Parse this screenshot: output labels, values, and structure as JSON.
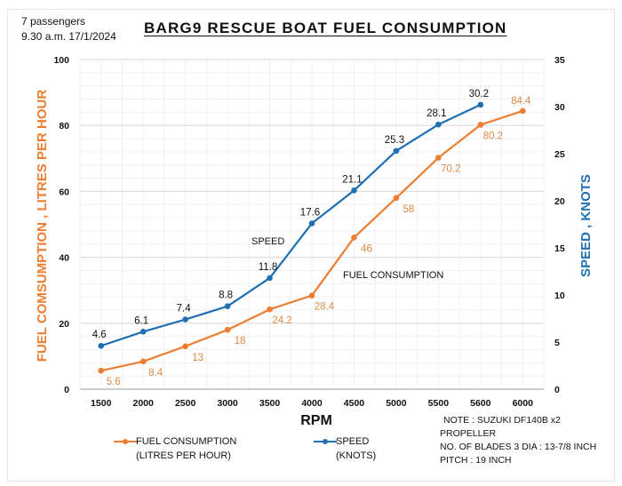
{
  "header": {
    "info_line1": "7 passengers",
    "info_line2": "9.30 a.m. 17/1/2024"
  },
  "chart_data": {
    "type": "line",
    "title": "BARG9 RESCUE BOAT FUEL CONSUMPTION",
    "xlabel": "RPM",
    "ylabel_left": "FUEL COMSUMPTION , LITRES PER HOUR",
    "ylabel_right": "SPEED , KNOTS",
    "categories": [
      "1500",
      "2000",
      "2500",
      "3000",
      "3500",
      "4000",
      "4500",
      "5000",
      "5500",
      "5600",
      "6000"
    ],
    "ylim_left": [
      0,
      100
    ],
    "yticks_left": [
      0,
      20,
      40,
      60,
      80,
      100
    ],
    "ylim_right": [
      0,
      35
    ],
    "yticks_right": [
      0,
      5,
      10,
      15,
      20,
      25,
      30,
      35
    ],
    "grid": true,
    "legend_position": "bottom",
    "series": [
      {
        "name": "FUEL CONSUMPTION (LITRES PER HOUR)",
        "axis": "left",
        "color": "#ED7D31",
        "label_color": "#E08A45",
        "values": [
          5.6,
          8.4,
          13,
          18,
          24.2,
          28.4,
          46,
          58,
          70.2,
          80.2,
          84.4
        ]
      },
      {
        "name": "SPEED (KNOTS)",
        "axis": "right",
        "color": "#1F6FB2",
        "label_color": "#111111",
        "values": [
          4.6,
          6.1,
          7.4,
          8.8,
          11.8,
          17.6,
          21.1,
          25.3,
          28.1,
          30.2,
          null
        ]
      }
    ],
    "annotations": [
      {
        "text": "SPEED",
        "near_series": "SPEED (KNOTS)"
      },
      {
        "text": "FUEL CONSUMPTION",
        "near_series": "FUEL CONSUMPTION (LITRES PER HOUR)"
      }
    ]
  },
  "legend": {
    "fuel_line1": "FUEL CONSUMPTION",
    "fuel_line2": "(LITRES PER HOUR)",
    "speed_line1": "SPEED",
    "speed_line2": "(KNOTS)"
  },
  "note": {
    "line1": "NOTE : SUZUKI DF140B  x2",
    "line2": "PROPELLER",
    "line3": "NO. OF BLADES 3 DIA : 13-7/8 INCH",
    "line4": "PITCH : 19 INCH"
  }
}
